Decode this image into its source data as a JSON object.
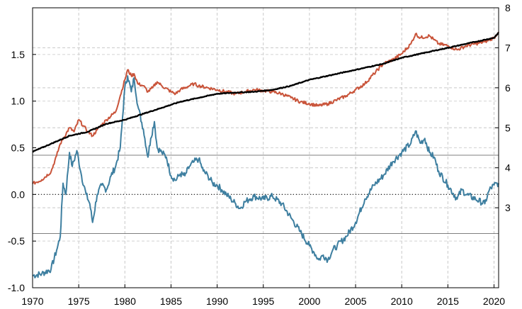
{
  "chart_data": {
    "type": "line",
    "title": "",
    "xlabel": "",
    "ylabel_left": "",
    "ylabel_right": "",
    "grid": true,
    "legend": "none",
    "xlim": [
      1970,
      2020.5
    ],
    "ylim_left": [
      -1.0,
      2.0
    ],
    "ylim_right": [
      1.0,
      8.0
    ],
    "x_ticks": [
      "1970",
      "1975",
      "1980",
      "1985",
      "1990",
      "1995",
      "2000",
      "2005",
      "2010",
      "2015",
      "2020"
    ],
    "y_ticks_left": [
      "-1.0",
      "-0.5",
      "0.0",
      "0.5",
      "1.0",
      "1.5"
    ],
    "y_ticks_right": [
      "3",
      "4",
      "5",
      "6",
      "7",
      "8"
    ],
    "reference_lines_left": [
      {
        "y": 0.0,
        "style": "dotted"
      },
      {
        "y": 0.42,
        "style": "solid-thin"
      },
      {
        "y": -0.42,
        "style": "solid-thin"
      }
    ],
    "series": [
      {
        "axis": "left",
        "color": "#3E7FA0",
        "points": [
          [
            1970,
            -0.87
          ],
          [
            1971,
            -0.85
          ],
          [
            1972,
            -0.8
          ],
          [
            1972.6,
            -0.6
          ],
          [
            1973,
            -0.45
          ],
          [
            1973.3,
            0.12
          ],
          [
            1973.6,
            0.0
          ],
          [
            1974,
            0.45
          ],
          [
            1974.3,
            0.3
          ],
          [
            1974.8,
            0.47
          ],
          [
            1975.3,
            0.2
          ],
          [
            1975.8,
            0.0
          ],
          [
            1976.2,
            -0.1
          ],
          [
            1976.5,
            -0.3
          ],
          [
            1977,
            0.0
          ],
          [
            1977.5,
            0.1
          ],
          [
            1978,
            0.05
          ],
          [
            1978.5,
            0.2
          ],
          [
            1979,
            0.3
          ],
          [
            1979.5,
            0.5
          ],
          [
            1980,
            1.15
          ],
          [
            1980.3,
            1.27
          ],
          [
            1980.7,
            1.1
          ],
          [
            1981,
            1.25
          ],
          [
            1981.4,
            0.95
          ],
          [
            1982,
            0.7
          ],
          [
            1982.5,
            0.4
          ],
          [
            1982.8,
            0.6
          ],
          [
            1983.2,
            0.78
          ],
          [
            1983.5,
            0.5
          ],
          [
            1984,
            0.45
          ],
          [
            1984.5,
            0.4
          ],
          [
            1985,
            0.2
          ],
          [
            1985.5,
            0.15
          ],
          [
            1986,
            0.22
          ],
          [
            1986.5,
            0.2
          ],
          [
            1987,
            0.3
          ],
          [
            1987.5,
            0.35
          ],
          [
            1988,
            0.38
          ],
          [
            1988.5,
            0.25
          ],
          [
            1989,
            0.2
          ],
          [
            1989.5,
            0.12
          ],
          [
            1990,
            0.1
          ],
          [
            1990.5,
            0.05
          ],
          [
            1991,
            0.0
          ],
          [
            1991.5,
            -0.05
          ],
          [
            1992,
            -0.1
          ],
          [
            1992.5,
            -0.15
          ],
          [
            1993,
            -0.08
          ],
          [
            1993.5,
            -0.05
          ],
          [
            1994,
            -0.02
          ],
          [
            1995,
            -0.05
          ],
          [
            1996,
            -0.02
          ],
          [
            1997,
            -0.1
          ],
          [
            1998,
            -0.25
          ],
          [
            1999,
            -0.4
          ],
          [
            2000,
            -0.55
          ],
          [
            2000.5,
            -0.62
          ],
          [
            2001,
            -0.7
          ],
          [
            2001.5,
            -0.65
          ],
          [
            2002,
            -0.7
          ],
          [
            2002.5,
            -0.6
          ],
          [
            2003,
            -0.55
          ],
          [
            2004,
            -0.45
          ],
          [
            2005,
            -0.3
          ],
          [
            2006,
            -0.05
          ],
          [
            2007,
            0.1
          ],
          [
            2008,
            0.2
          ],
          [
            2009,
            0.35
          ],
          [
            2010,
            0.45
          ],
          [
            2011,
            0.55
          ],
          [
            2011.5,
            0.68
          ],
          [
            2012,
            0.55
          ],
          [
            2012.5,
            0.6
          ],
          [
            2013,
            0.45
          ],
          [
            2013.5,
            0.4
          ],
          [
            2014,
            0.25
          ],
          [
            2015,
            0.1
          ],
          [
            2016,
            -0.05
          ],
          [
            2016.5,
            0.05
          ],
          [
            2017,
            0.0
          ],
          [
            2018,
            -0.05
          ],
          [
            2019,
            -0.1
          ],
          [
            2019.5,
            0.05
          ],
          [
            2020,
            0.1
          ],
          [
            2020.5,
            0.12
          ]
        ]
      },
      {
        "axis": "right",
        "color": "#C9543A",
        "points": [
          [
            1970,
            3.6
          ],
          [
            1971,
            3.7
          ],
          [
            1972,
            3.9
          ],
          [
            1972.6,
            4.3
          ],
          [
            1973,
            4.6
          ],
          [
            1974,
            5.0
          ],
          [
            1974.5,
            4.9
          ],
          [
            1975,
            5.2
          ],
          [
            1975.5,
            5.05
          ],
          [
            1976,
            4.9
          ],
          [
            1976.5,
            4.8
          ],
          [
            1977,
            4.95
          ],
          [
            1978,
            5.2
          ],
          [
            1979,
            5.4
          ],
          [
            1979.5,
            5.8
          ],
          [
            1980,
            6.2
          ],
          [
            1980.3,
            6.45
          ],
          [
            1980.7,
            6.3
          ],
          [
            1981,
            6.35
          ],
          [
            1981.4,
            6.1
          ],
          [
            1982,
            6.05
          ],
          [
            1982.5,
            5.9
          ],
          [
            1983,
            6.0
          ],
          [
            1983.5,
            6.15
          ],
          [
            1984,
            6.05
          ],
          [
            1985,
            5.9
          ],
          [
            1985.5,
            5.85
          ],
          [
            1986,
            5.95
          ],
          [
            1987,
            6.05
          ],
          [
            1987.5,
            6.1
          ],
          [
            1988,
            6.05
          ],
          [
            1989,
            6.0
          ],
          [
            1990,
            5.95
          ],
          [
            1991,
            5.9
          ],
          [
            1992,
            5.85
          ],
          [
            1993,
            5.9
          ],
          [
            1994,
            5.95
          ],
          [
            1995,
            5.93
          ],
          [
            1996,
            5.9
          ],
          [
            1997,
            5.85
          ],
          [
            1998,
            5.75
          ],
          [
            1999,
            5.65
          ],
          [
            2000,
            5.6
          ],
          [
            2001,
            5.55
          ],
          [
            2002,
            5.6
          ],
          [
            2003,
            5.7
          ],
          [
            2004,
            5.8
          ],
          [
            2005,
            5.95
          ],
          [
            2006,
            6.1
          ],
          [
            2007,
            6.35
          ],
          [
            2008,
            6.6
          ],
          [
            2009,
            6.7
          ],
          [
            2010,
            6.85
          ],
          [
            2011,
            7.1
          ],
          [
            2011.5,
            7.35
          ],
          [
            2012,
            7.25
          ],
          [
            2013,
            7.3
          ],
          [
            2013.5,
            7.2
          ],
          [
            2014,
            7.1
          ],
          [
            2015,
            7.05
          ],
          [
            2016,
            6.95
          ],
          [
            2017,
            7.05
          ],
          [
            2018,
            7.1
          ],
          [
            2019,
            7.15
          ],
          [
            2020,
            7.25
          ],
          [
            2020.5,
            7.4
          ]
        ]
      },
      {
        "axis": "right",
        "color": "#000000",
        "points": [
          [
            1970,
            4.4
          ],
          [
            1972,
            4.6
          ],
          [
            1974,
            4.8
          ],
          [
            1976,
            4.9
          ],
          [
            1978,
            5.1
          ],
          [
            1980,
            5.2
          ],
          [
            1982,
            5.35
          ],
          [
            1984,
            5.5
          ],
          [
            1986,
            5.65
          ],
          [
            1988,
            5.75
          ],
          [
            1990,
            5.85
          ],
          [
            1992,
            5.88
          ],
          [
            1994,
            5.9
          ],
          [
            1996,
            5.95
          ],
          [
            1998,
            6.05
          ],
          [
            2000,
            6.2
          ],
          [
            2002,
            6.3
          ],
          [
            2004,
            6.4
          ],
          [
            2006,
            6.5
          ],
          [
            2008,
            6.6
          ],
          [
            2010,
            6.75
          ],
          [
            2012,
            6.85
          ],
          [
            2014,
            6.95
          ],
          [
            2016,
            7.05
          ],
          [
            2018,
            7.15
          ],
          [
            2020,
            7.25
          ],
          [
            2020.5,
            7.38
          ]
        ]
      }
    ]
  }
}
